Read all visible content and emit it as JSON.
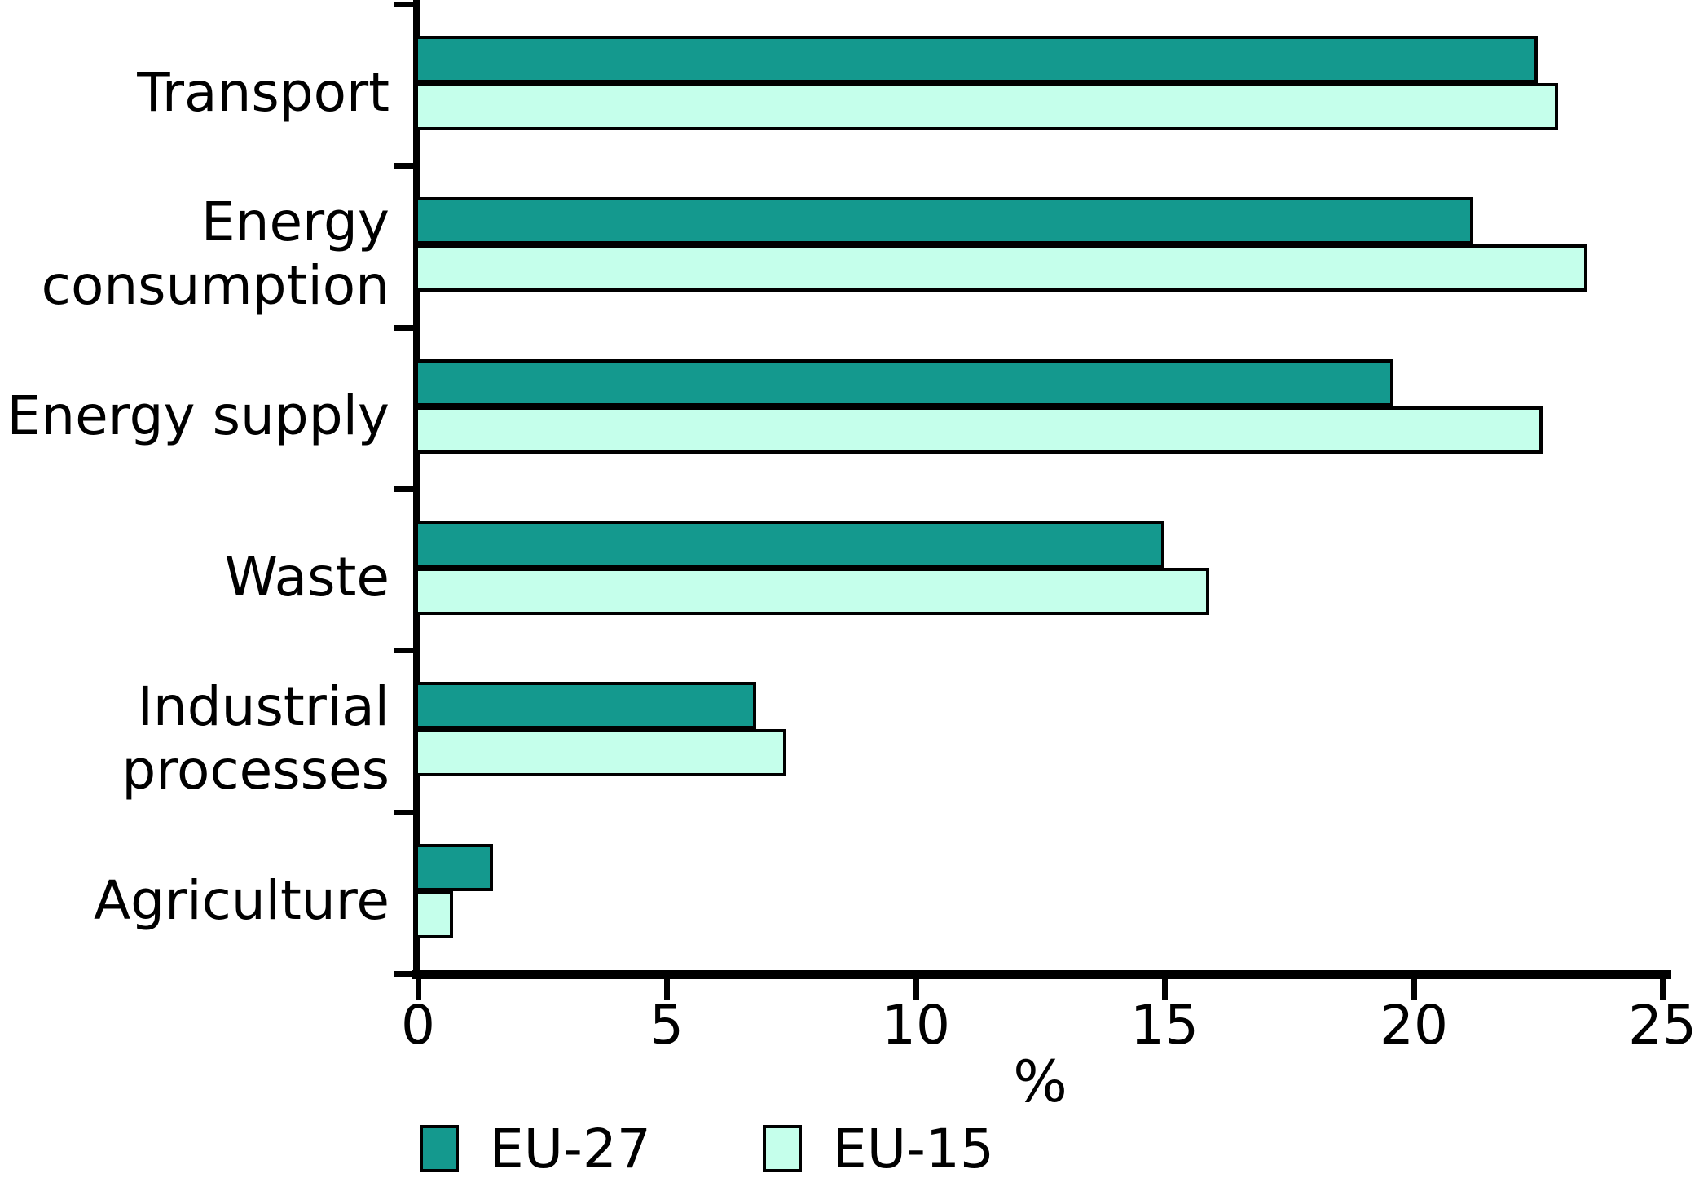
{
  "chart_data": {
    "type": "bar",
    "orientation": "horizontal",
    "title": "",
    "categories": [
      "Transport",
      "Energy consumption",
      "Energy supply",
      "Waste",
      "Industrial processes",
      "Agriculture"
    ],
    "category_lines": [
      [
        "Transport"
      ],
      [
        "Energy",
        "consumption"
      ],
      [
        "Energy supply"
      ],
      [
        "Waste"
      ],
      [
        "Industrial",
        "processes"
      ],
      [
        "Agriculture"
      ]
    ],
    "series": [
      {
        "name": "EU-27",
        "color": "#14998e",
        "values": [
          22.5,
          21.2,
          19.6,
          15.0,
          6.8,
          1.5
        ]
      },
      {
        "name": "EU-15",
        "color": "#c5ffeb",
        "values": [
          22.9,
          23.5,
          22.6,
          15.9,
          7.4,
          0.7
        ]
      }
    ],
    "xlabel": "%",
    "xlim": [
      0,
      25
    ],
    "xticks": [
      0,
      5,
      10,
      15,
      20,
      25
    ],
    "grid": false,
    "legend_position": "bottom",
    "axis_color": "#000000",
    "bar_border_color": "#000000"
  },
  "legend": {
    "items": [
      {
        "label": "EU-27",
        "color": "#14998e"
      },
      {
        "label": "EU-15",
        "color": "#c5ffeb"
      }
    ]
  }
}
